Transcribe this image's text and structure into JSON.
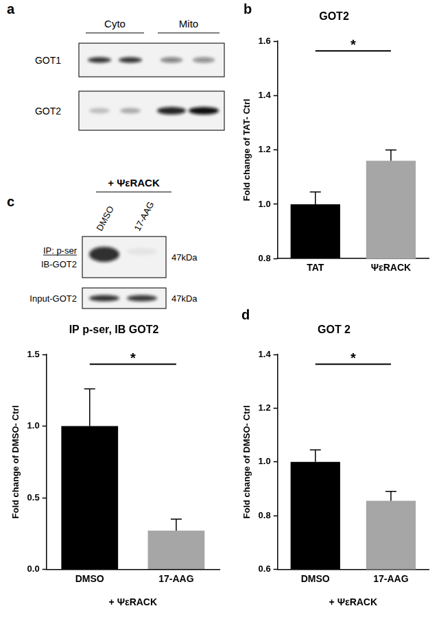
{
  "chart_data": [
    {
      "panel_label": "b",
      "type": "bar",
      "title": "GOT2",
      "ylabel": "Fold change of TAT- Ctrl",
      "categories": [
        "TAT",
        "ΨεRACK"
      ],
      "values": [
        1.0,
        1.16
      ],
      "error": [
        0.045,
        0.04
      ],
      "colors": [
        "#000000",
        "#a6a6a6"
      ],
      "ylim": [
        0.8,
        1.6
      ],
      "yticks": [
        0.8,
        {
          "value": 1,
          "label": "1.0"
        },
        1.2,
        1.4,
        1.6
      ],
      "grid": false,
      "annotations": [
        "*"
      ]
    },
    {
      "type": "bar",
      "title": "IP p-ser, IB GOT2",
      "ylabel": "Fold change of DMSO- Ctrl",
      "xlabel": "+ ΨεRACK",
      "categories": [
        "DMSO",
        "17-AAG"
      ],
      "values": [
        1.0,
        0.27
      ],
      "error": [
        0.26,
        0.08
      ],
      "colors": [
        "#000000",
        "#a6a6a6"
      ],
      "ylim": [
        0,
        1.5
      ],
      "yticks": [
        {
          "value": 0,
          "label": "0.0"
        },
        0.5,
        {
          "value": 1,
          "label": "1.0"
        },
        1.5
      ],
      "grid": false,
      "annotations": [
        "*"
      ]
    },
    {
      "panel_label": "d",
      "type": "bar",
      "title": "GOT 2",
      "ylabel": "Fold change of DMSO- Ctrl",
      "xlabel": "+ ΨεRACK",
      "categories": [
        "DMSO",
        "17-AAG"
      ],
      "values": [
        1.0,
        0.855
      ],
      "error": [
        0.045,
        0.035
      ],
      "colors": [
        "#000000",
        "#a6a6a6"
      ],
      "ylim": [
        0.6,
        1.4
      ],
      "yticks": [
        0.6,
        0.8,
        {
          "value": 1,
          "label": "1.0"
        },
        1.2,
        1.4
      ],
      "grid": false,
      "annotations": [
        "*"
      ]
    }
  ],
  "blots": [
    {
      "panel_label": "a",
      "lane_groups": [
        "Cyto",
        "Mito"
      ],
      "rows": [
        {
          "labels": [
            "GOT1"
          ]
        },
        {
          "labels": [
            "GOT2"
          ]
        }
      ]
    },
    {
      "panel_label": "c",
      "header": "+ ΨεRACK",
      "lanes": [
        "DMSO",
        "17-AAG"
      ],
      "rows": [
        {
          "labels": [
            "IP: p-ser",
            "IB-GOT2"
          ],
          "size": "47kDa"
        },
        {
          "labels": [
            "Input-GOT2"
          ],
          "size": "47kDa"
        }
      ]
    }
  ]
}
